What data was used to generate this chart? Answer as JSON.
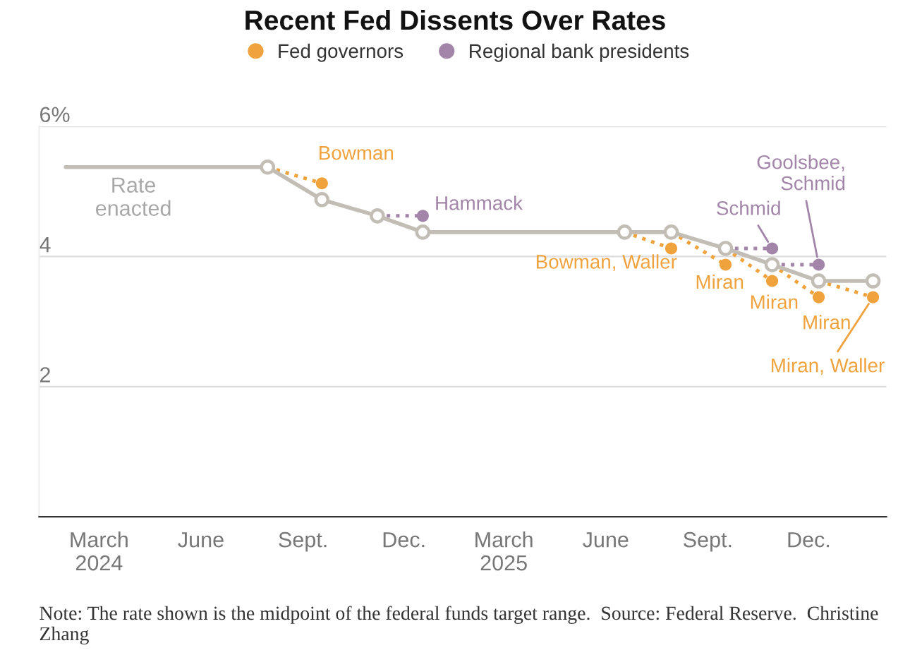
{
  "chart_data": {
    "type": "line",
    "title": "Recent Fed Dissents Over Rates",
    "xlim": [
      "2024-01-07",
      "2026-02-09"
    ],
    "xticks": [
      {
        "value": "2024-03-01",
        "label": "March\n2024"
      },
      {
        "value": "2024-06-01",
        "label": "June"
      },
      {
        "value": "2024-09-01",
        "label": "Sept."
      },
      {
        "value": "2024-12-01",
        "label": "Dec."
      },
      {
        "value": "2025-03-01",
        "label": "March\n2025"
      },
      {
        "value": "2025-06-01",
        "label": "June"
      },
      {
        "value": "2025-09-01",
        "label": "Sept."
      },
      {
        "value": "2025-12-01",
        "label": "Dec."
      }
    ],
    "ylim": [
      0,
      6
    ],
    "yticks": [
      {
        "value": 2,
        "label": "2"
      },
      {
        "value": 4,
        "label": "4"
      },
      {
        "value": 6,
        "label": "6%"
      }
    ],
    "grid": "y",
    "legend": "top",
    "series": [
      {
        "name": "Rate\nenacted",
        "color": "#c2beb6",
        "marker": "circle",
        "x": [
          "2024-01-31",
          "2024-07-31",
          "2024-09-18",
          "2024-11-07",
          "2024-12-18",
          "2025-06-18",
          "2025-07-30",
          "2025-09-17",
          "2025-10-29",
          "2025-12-10",
          "2026-01-28"
        ],
        "values": [
          5.375,
          5.375,
          4.875,
          4.625,
          4.375,
          4.375,
          4.375,
          4.125,
          3.875,
          3.625,
          3.625
        ]
      },
      {
        "type": "scatter",
        "name": "Fed governors",
        "color": "#f0a23c",
        "line_style": "dotted",
        "x": [
          "2024-09-18",
          "2025-07-30",
          "2025-09-17",
          "2025-10-29",
          "2025-12-10",
          "2026-01-28"
        ],
        "values": [
          5.125,
          4.125,
          3.875,
          3.625,
          3.375,
          3.375
        ]
      },
      {
        "type": "scatter",
        "name": "Regional bank presidents",
        "color": "#a285a8",
        "line_style": "dotted",
        "x": [
          "2024-12-18",
          "2025-10-29",
          "2025-12-10"
        ],
        "values": [
          4.625,
          4.125,
          3.875
        ]
      }
    ],
    "annotations": [
      {
        "text": "Bowman",
        "x": "2024-09-18",
        "y": 5.125
      },
      {
        "text": "Hammack",
        "x": "2024-12-18",
        "y": 4.625
      },
      {
        "text": "Bowman, Waller",
        "x": "2025-07-30",
        "y": 4.125
      },
      {
        "text": "Miran",
        "x": "2025-09-17",
        "y": 3.875
      },
      {
        "text": "Schmid",
        "x": "2025-10-29",
        "y": 4.125
      },
      {
        "text": "Miran",
        "x": "2025-10-29",
        "y": 3.625
      },
      {
        "text": "Goolsbee,\nSchmid",
        "x": "2025-12-10",
        "y": 3.875
      },
      {
        "text": "Miran",
        "x": "2025-12-10",
        "y": 3.375
      },
      {
        "text": "Miran, Waller",
        "x": "2026-01-28",
        "y": 3.375
      },
      "Note: The rate shown is the midpoint of the federal funds target range.  Source: Federal Reserve.  Christine Zhang"
    ]
  }
}
